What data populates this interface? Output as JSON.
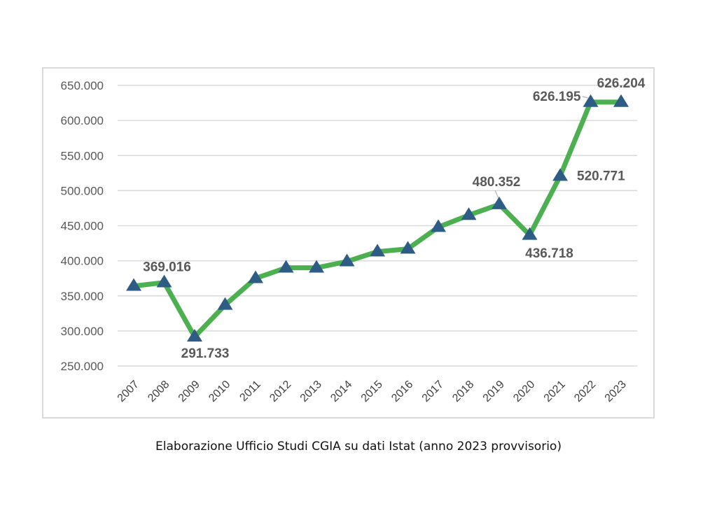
{
  "chart_data": {
    "type": "line",
    "title": "",
    "xlabel": "",
    "ylabel": "",
    "categories": [
      "2007",
      "2008",
      "2009",
      "2010",
      "2011",
      "2012",
      "2013",
      "2014",
      "2015",
      "2016",
      "2017",
      "2018",
      "2019",
      "2020",
      "2021",
      "2022",
      "2023"
    ],
    "series": [
      {
        "values": [
          364000,
          369016,
          291733,
          337000,
          375000,
          390000,
          390000,
          399000,
          413000,
          417000,
          448000,
          465000,
          480352,
          436718,
          520771,
          626195,
          626204
        ],
        "line_color": "#4caf50",
        "marker": "triangle",
        "marker_color": "#2e5c85"
      }
    ],
    "ylim": [
      250000,
      650000
    ],
    "yticks": [
      "250.000",
      "300.000",
      "350.000",
      "400.000",
      "450.000",
      "500.000",
      "550.000",
      "600.000",
      "650.000"
    ],
    "grid": true,
    "data_labels": [
      {
        "category": "2008",
        "text": "369.016"
      },
      {
        "category": "2009",
        "text": "291.733"
      },
      {
        "category": "2019",
        "text": "480.352"
      },
      {
        "category": "2020",
        "text": "436.718"
      },
      {
        "category": "2021",
        "text": "520.771"
      },
      {
        "category": "2022",
        "text": "626.195"
      },
      {
        "category": "2023",
        "text": "626.204"
      }
    ]
  },
  "caption": "Elaborazione Ufficio Studi CGIA su dati Istat (anno 2023 provvisorio)"
}
